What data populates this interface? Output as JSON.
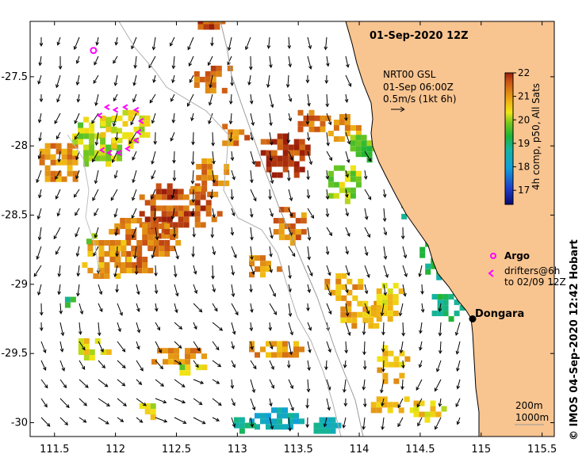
{
  "title": "01-Sep-2020 12Z",
  "credit": "©  IMOS 04-Sep-2020 12:42 Hobart",
  "current_legend": {
    "line1": "NRT00 GSL",
    "line2": "01-Sep 06:00Z",
    "line3": "0.5m/s (1kt 6h)"
  },
  "colorbar": {
    "label": "4h comp, p50, All Sats",
    "ticks": [
      "22",
      "21",
      "20",
      "19",
      "18",
      "17"
    ],
    "min": 16.4,
    "max": 22
  },
  "axes": {
    "x_ticks": [
      "111.5",
      "112",
      "112.5",
      "113",
      "113.5",
      "114",
      "114.5",
      "115",
      "115.5"
    ],
    "y_ticks": [
      "-27.5",
      "-28",
      "-28.5",
      "-29",
      "-29.5",
      "-30"
    ],
    "x_range": [
      111.3,
      115.6
    ],
    "y_range": [
      -30.1,
      -27.1
    ]
  },
  "place": {
    "name": "Dongara",
    "lon": 114.93,
    "lat": -29.25
  },
  "drifter_legend": {
    "argo_label": "Argo",
    "drifters_line1": "drifters@6h",
    "drifters_line2": "to 02/09 12Z"
  },
  "scale_box": {
    "line1": "200m",
    "line2": "1000m"
  },
  "argo_float": {
    "lon": 111.82,
    "lat": -27.31
  },
  "drifter_track": [
    {
      "lon": 111.87,
      "lat": -27.78
    },
    {
      "lon": 111.93,
      "lat": -27.72
    },
    {
      "lon": 112.0,
      "lat": -27.74
    },
    {
      "lon": 112.08,
      "lat": -27.72
    },
    {
      "lon": 112.17,
      "lat": -27.74
    },
    {
      "lon": 112.21,
      "lat": -27.82
    },
    {
      "lon": 112.19,
      "lat": -27.9
    },
    {
      "lon": 112.17,
      "lat": -27.96
    },
    {
      "lon": 112.1,
      "lat": -28.02
    },
    {
      "lon": 112.03,
      "lat": -28.05
    },
    {
      "lon": 111.95,
      "lat": -28.05
    },
    {
      "lon": 111.89,
      "lat": -28.03
    }
  ],
  "sst_patches": [
    {
      "lon": 111.55,
      "lat": -28.1,
      "rlon": 0.22,
      "rlat": 0.16,
      "sst": 21.1
    },
    {
      "lon": 111.85,
      "lat": -27.95,
      "rlon": 0.25,
      "rlat": 0.2,
      "sst": 20.0
    },
    {
      "lon": 112.05,
      "lat": -27.85,
      "rlon": 0.22,
      "rlat": 0.15,
      "sst": 20.3
    },
    {
      "lon": 112.5,
      "lat": -28.45,
      "rlon": 0.35,
      "rlat": 0.22,
      "sst": 21.6
    },
    {
      "lon": 112.2,
      "lat": -28.7,
      "rlon": 0.3,
      "rlat": 0.22,
      "sst": 21.3
    },
    {
      "lon": 111.9,
      "lat": -28.8,
      "rlon": 0.22,
      "rlat": 0.16,
      "sst": 21.0
    },
    {
      "lon": 112.75,
      "lat": -28.2,
      "rlon": 0.18,
      "rlat": 0.15,
      "sst": 21.2
    },
    {
      "lon": 112.8,
      "lat": -27.5,
      "rlon": 0.2,
      "rlat": 0.12,
      "sst": 21.4
    },
    {
      "lon": 112.75,
      "lat": -27.08,
      "rlon": 0.12,
      "rlat": 0.08,
      "sst": 21.7
    },
    {
      "lon": 113.35,
      "lat": -28.05,
      "rlon": 0.25,
      "rlat": 0.18,
      "sst": 21.8
    },
    {
      "lon": 112.95,
      "lat": -27.9,
      "rlon": 0.12,
      "rlat": 0.1,
      "sst": 21.3
    },
    {
      "lon": 113.6,
      "lat": -27.8,
      "rlon": 0.15,
      "rlat": 0.1,
      "sst": 21.3
    },
    {
      "lon": 113.85,
      "lat": -27.85,
      "rlon": 0.15,
      "rlat": 0.12,
      "sst": 21.0
    },
    {
      "lon": 113.4,
      "lat": -28.55,
      "rlon": 0.15,
      "rlat": 0.15,
      "sst": 21.3
    },
    {
      "lon": 113.2,
      "lat": -28.85,
      "rlon": 0.15,
      "rlat": 0.1,
      "sst": 21.0
    },
    {
      "lon": 113.85,
      "lat": -29.0,
      "rlon": 0.18,
      "rlat": 0.12,
      "sst": 21.0
    },
    {
      "lon": 114.0,
      "lat": -29.2,
      "rlon": 0.2,
      "rlat": 0.12,
      "sst": 20.8
    },
    {
      "lon": 114.2,
      "lat": -29.1,
      "rlon": 0.15,
      "rlat": 0.15,
      "sst": 20.6
    },
    {
      "lon": 113.3,
      "lat": -29.45,
      "rlon": 0.25,
      "rlat": 0.08,
      "sst": 21.0
    },
    {
      "lon": 112.5,
      "lat": -29.5,
      "rlon": 0.25,
      "rlat": 0.08,
      "sst": 21.2
    },
    {
      "lon": 111.8,
      "lat": -29.45,
      "rlon": 0.15,
      "rlat": 0.1,
      "sst": 20.4
    },
    {
      "lon": 114.25,
      "lat": -29.55,
      "rlon": 0.15,
      "rlat": 0.15,
      "sst": 20.7
    },
    {
      "lon": 114.25,
      "lat": -29.85,
      "rlon": 0.2,
      "rlat": 0.08,
      "sst": 20.6
    },
    {
      "lon": 114.55,
      "lat": -29.9,
      "rlon": 0.15,
      "rlat": 0.1,
      "sst": 20.5
    },
    {
      "lon": 114.35,
      "lat": -28.05,
      "rlon": 0.2,
      "rlat": 0.15,
      "sst": 19.4
    },
    {
      "lon": 114.5,
      "lat": -28.4,
      "rlon": 0.2,
      "rlat": 0.15,
      "sst": 19.1
    },
    {
      "lon": 114.6,
      "lat": -28.8,
      "rlon": 0.15,
      "rlat": 0.15,
      "sst": 19.0
    },
    {
      "lon": 114.7,
      "lat": -29.15,
      "rlon": 0.15,
      "rlat": 0.12,
      "sst": 18.9
    },
    {
      "lon": 113.85,
      "lat": -28.25,
      "rlon": 0.15,
      "rlat": 0.15,
      "sst": 20.0
    },
    {
      "lon": 114.0,
      "lat": -28.0,
      "rlon": 0.12,
      "rlat": 0.12,
      "sst": 19.7
    },
    {
      "lon": 113.3,
      "lat": -29.95,
      "rlon": 0.25,
      "rlat": 0.1,
      "sst": 18.4
    },
    {
      "lon": 113.0,
      "lat": -30.0,
      "rlon": 0.12,
      "rlat": 0.08,
      "sst": 19.0
    },
    {
      "lon": 113.7,
      "lat": -30.0,
      "rlon": 0.12,
      "rlat": 0.08,
      "sst": 18.6
    },
    {
      "lon": 112.6,
      "lat": -29.6,
      "rlon": 0.12,
      "rlat": 0.06,
      "sst": 20.1
    },
    {
      "lon": 112.25,
      "lat": -29.9,
      "rlon": 0.1,
      "rlat": 0.08,
      "sst": 20.3
    },
    {
      "lon": 111.6,
      "lat": -29.1,
      "rlon": 0.06,
      "rlat": 0.05,
      "sst": 19.2
    },
    {
      "lon": 111.75,
      "lat": -28.65,
      "rlon": 0.08,
      "rlat": 0.06,
      "sst": 19.6
    }
  ]
}
